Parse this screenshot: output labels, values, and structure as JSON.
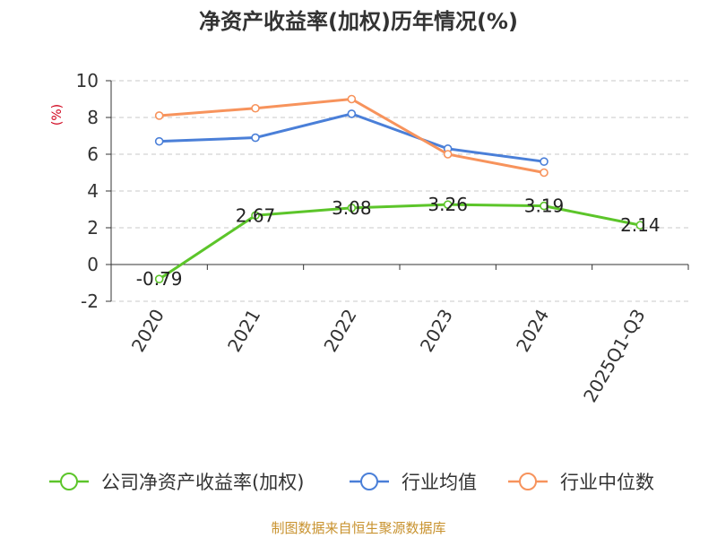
{
  "chart_data": {
    "type": "line",
    "title": "净资产收益率(加权)历年情况(%)",
    "ylabel": "(%)",
    "xlabel": "",
    "categories": [
      "2020",
      "2021",
      "2022",
      "2023",
      "2024",
      "2025Q1-Q3"
    ],
    "ylim": [
      -2,
      10
    ],
    "yticks": [
      -2,
      0,
      2,
      4,
      6,
      8,
      10
    ],
    "grid": true,
    "legend_position": "bottom",
    "series": [
      {
        "name": "公司净资产收益率(加权)",
        "color": "#5cc52a",
        "values": [
          -0.79,
          2.67,
          3.08,
          3.26,
          3.19,
          2.14
        ],
        "labels": [
          "-0.79",
          "2.67",
          "3.08",
          "3.26",
          "3.19",
          "2.14"
        ]
      },
      {
        "name": "行业均值",
        "color": "#4a7fd8",
        "values": [
          6.7,
          6.9,
          8.2,
          6.3,
          5.6,
          null
        ]
      },
      {
        "name": "行业中位数",
        "color": "#f7935c",
        "values": [
          8.1,
          8.5,
          9.0,
          6.0,
          5.0,
          null
        ]
      }
    ],
    "ylabel_color": "#d0021b"
  },
  "footer": {
    "source": "制图数据来自恒生聚源数据库",
    "source_color": "#c8922e"
  }
}
